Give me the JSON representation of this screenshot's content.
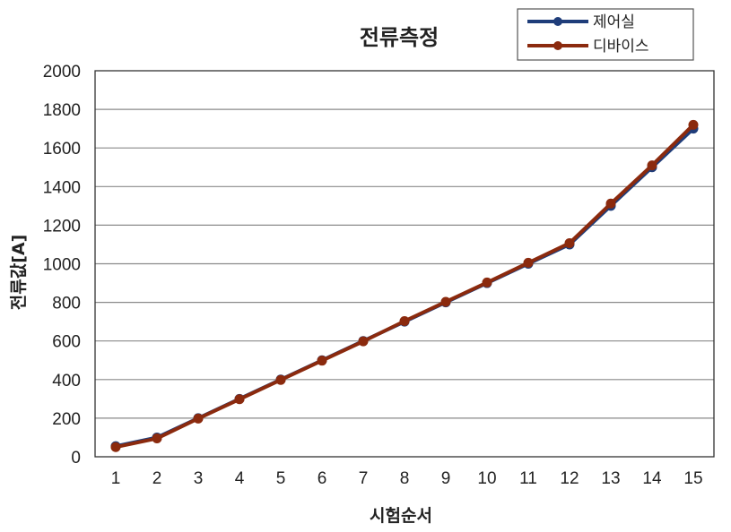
{
  "chart_data": {
    "type": "line",
    "title": "전류측정",
    "xlabel": "시험순서",
    "ylabel": "전류값[A]",
    "categories": [
      "1",
      "2",
      "3",
      "4",
      "5",
      "6",
      "7",
      "8",
      "9",
      "10",
      "11",
      "12",
      "13",
      "14",
      "15"
    ],
    "ylim": [
      0,
      2000
    ],
    "yticks": [
      "0",
      "200",
      "400",
      "600",
      "800",
      "1000",
      "1200",
      "1400",
      "1600",
      "1800",
      "2000"
    ],
    "grid": true,
    "legend_position": "top-right",
    "series": [
      {
        "name": "제어실",
        "color": "#1f3d7a",
        "values": [
          55,
          100,
          200,
          300,
          400,
          500,
          600,
          700,
          800,
          900,
          1000,
          1100,
          1300,
          1500,
          1700
        ]
      },
      {
        "name": "디바이스",
        "color": "#8b2a0e",
        "values": [
          50,
          95,
          198,
          298,
          398,
          498,
          598,
          703,
          803,
          903,
          1005,
          1107,
          1312,
          1510,
          1720
        ]
      }
    ]
  }
}
